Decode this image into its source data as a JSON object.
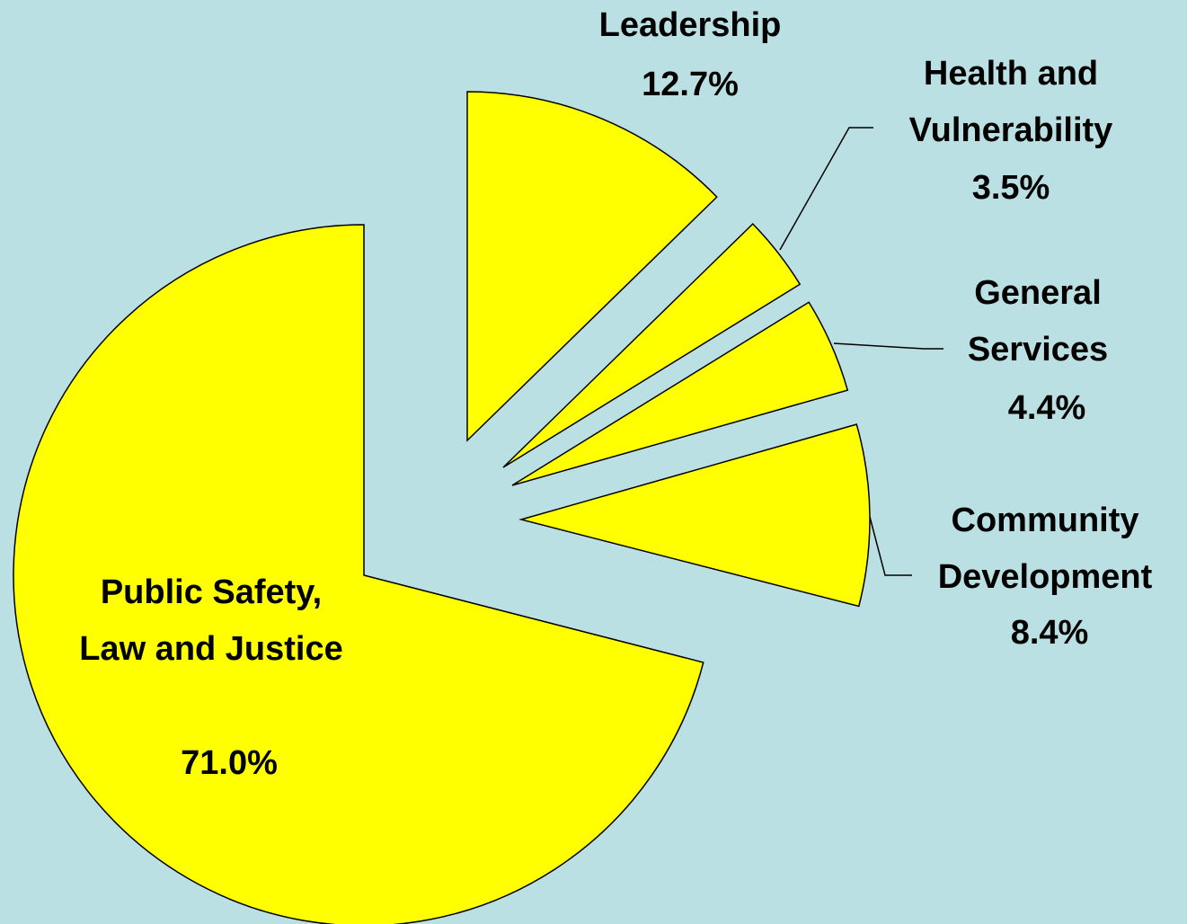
{
  "chart_data": {
    "type": "pie",
    "categories": [
      "Leadership",
      "Health and Vulnerability",
      "General Services",
      "Community Development",
      "Public Safety, Law and Justice"
    ],
    "values": [
      12.7,
      3.5,
      4.4,
      8.4,
      71.0
    ],
    "value_labels": [
      "12.7%",
      "3.5%",
      "4.4%",
      "8.4%",
      "71.0%"
    ],
    "color": "#ffff00",
    "background": "#bbe0e3"
  }
}
